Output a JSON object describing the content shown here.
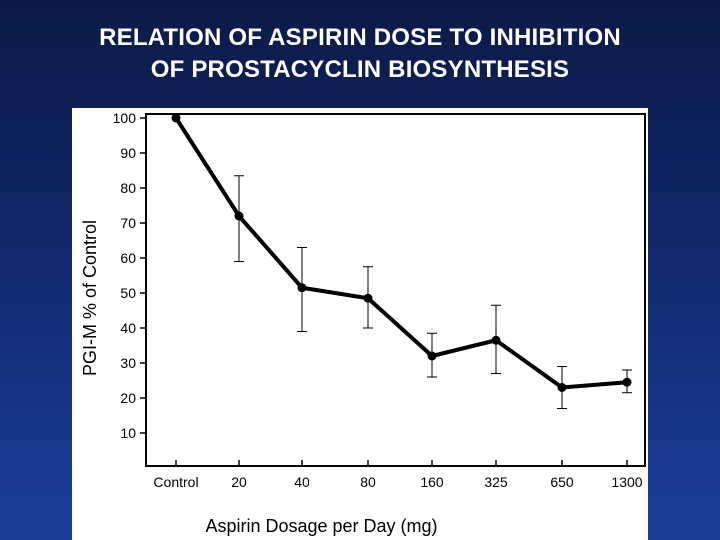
{
  "slide": {
    "title_line1": "RELATION OF ASPIRIN DOSE TO INHIBITION",
    "title_line2": "OF PROSTACYCLIN BIOSYNTHESIS"
  },
  "chart_data": {
    "type": "line",
    "title": "RELATION OF ASPIRIN DOSE TO INHIBITION OF PROSTACYCLIN BIOSYNTHESIS",
    "xlabel": "Aspirin Dosage per Day (mg)",
    "ylabel": "PGI-M % of Control",
    "categories": [
      "Control",
      "20",
      "40",
      "80",
      "160",
      "325",
      "650",
      "1300"
    ],
    "ylim": [
      10,
      100
    ],
    "yticks": [
      10,
      20,
      30,
      40,
      50,
      60,
      70,
      80,
      90,
      100
    ],
    "grid": false,
    "series": [
      {
        "values": [
          100,
          72,
          51.5,
          48.5,
          32,
          36.5,
          23,
          24.5
        ],
        "err_low": [
          null,
          59,
          39,
          40,
          26,
          27,
          17,
          21.5
        ],
        "err_high": [
          null,
          83.5,
          63,
          57.5,
          38.5,
          46.5,
          29,
          28
        ],
        "color": "#000000"
      }
    ]
  }
}
